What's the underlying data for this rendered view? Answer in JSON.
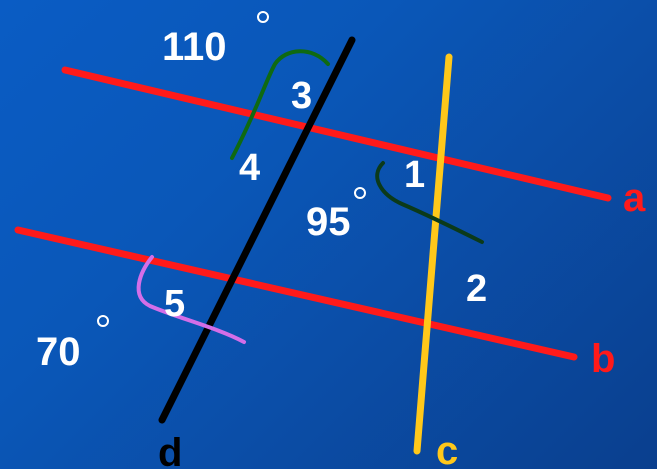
{
  "lines": {
    "a": {
      "label": "a",
      "color": "#ff1a1a"
    },
    "b": {
      "label": "b",
      "color": "#ff1a1a"
    },
    "c": {
      "label": "c",
      "color": "#ffc81a"
    },
    "d": {
      "label": "d",
      "color": "#000000"
    }
  },
  "angles": [
    {
      "id": "1",
      "label": "1"
    },
    {
      "id": "2",
      "label": "2"
    },
    {
      "id": "3",
      "label": "3"
    },
    {
      "id": "4",
      "label": "4"
    },
    {
      "id": "5",
      "label": "5"
    }
  ],
  "measures": [
    {
      "id": "m110",
      "value": "110"
    },
    {
      "id": "m95",
      "value": "95"
    },
    {
      "id": "m70",
      "value": "70"
    }
  ],
  "colors": {
    "label_white": "#ffffff",
    "label_red": "#ff1a1a",
    "label_yellow": "#ffc81a",
    "label_black": "#000000",
    "arc_green": "#0f6a12",
    "arc_darkgreen": "#0b3a1a",
    "arc_violet": "#d46ee8"
  }
}
